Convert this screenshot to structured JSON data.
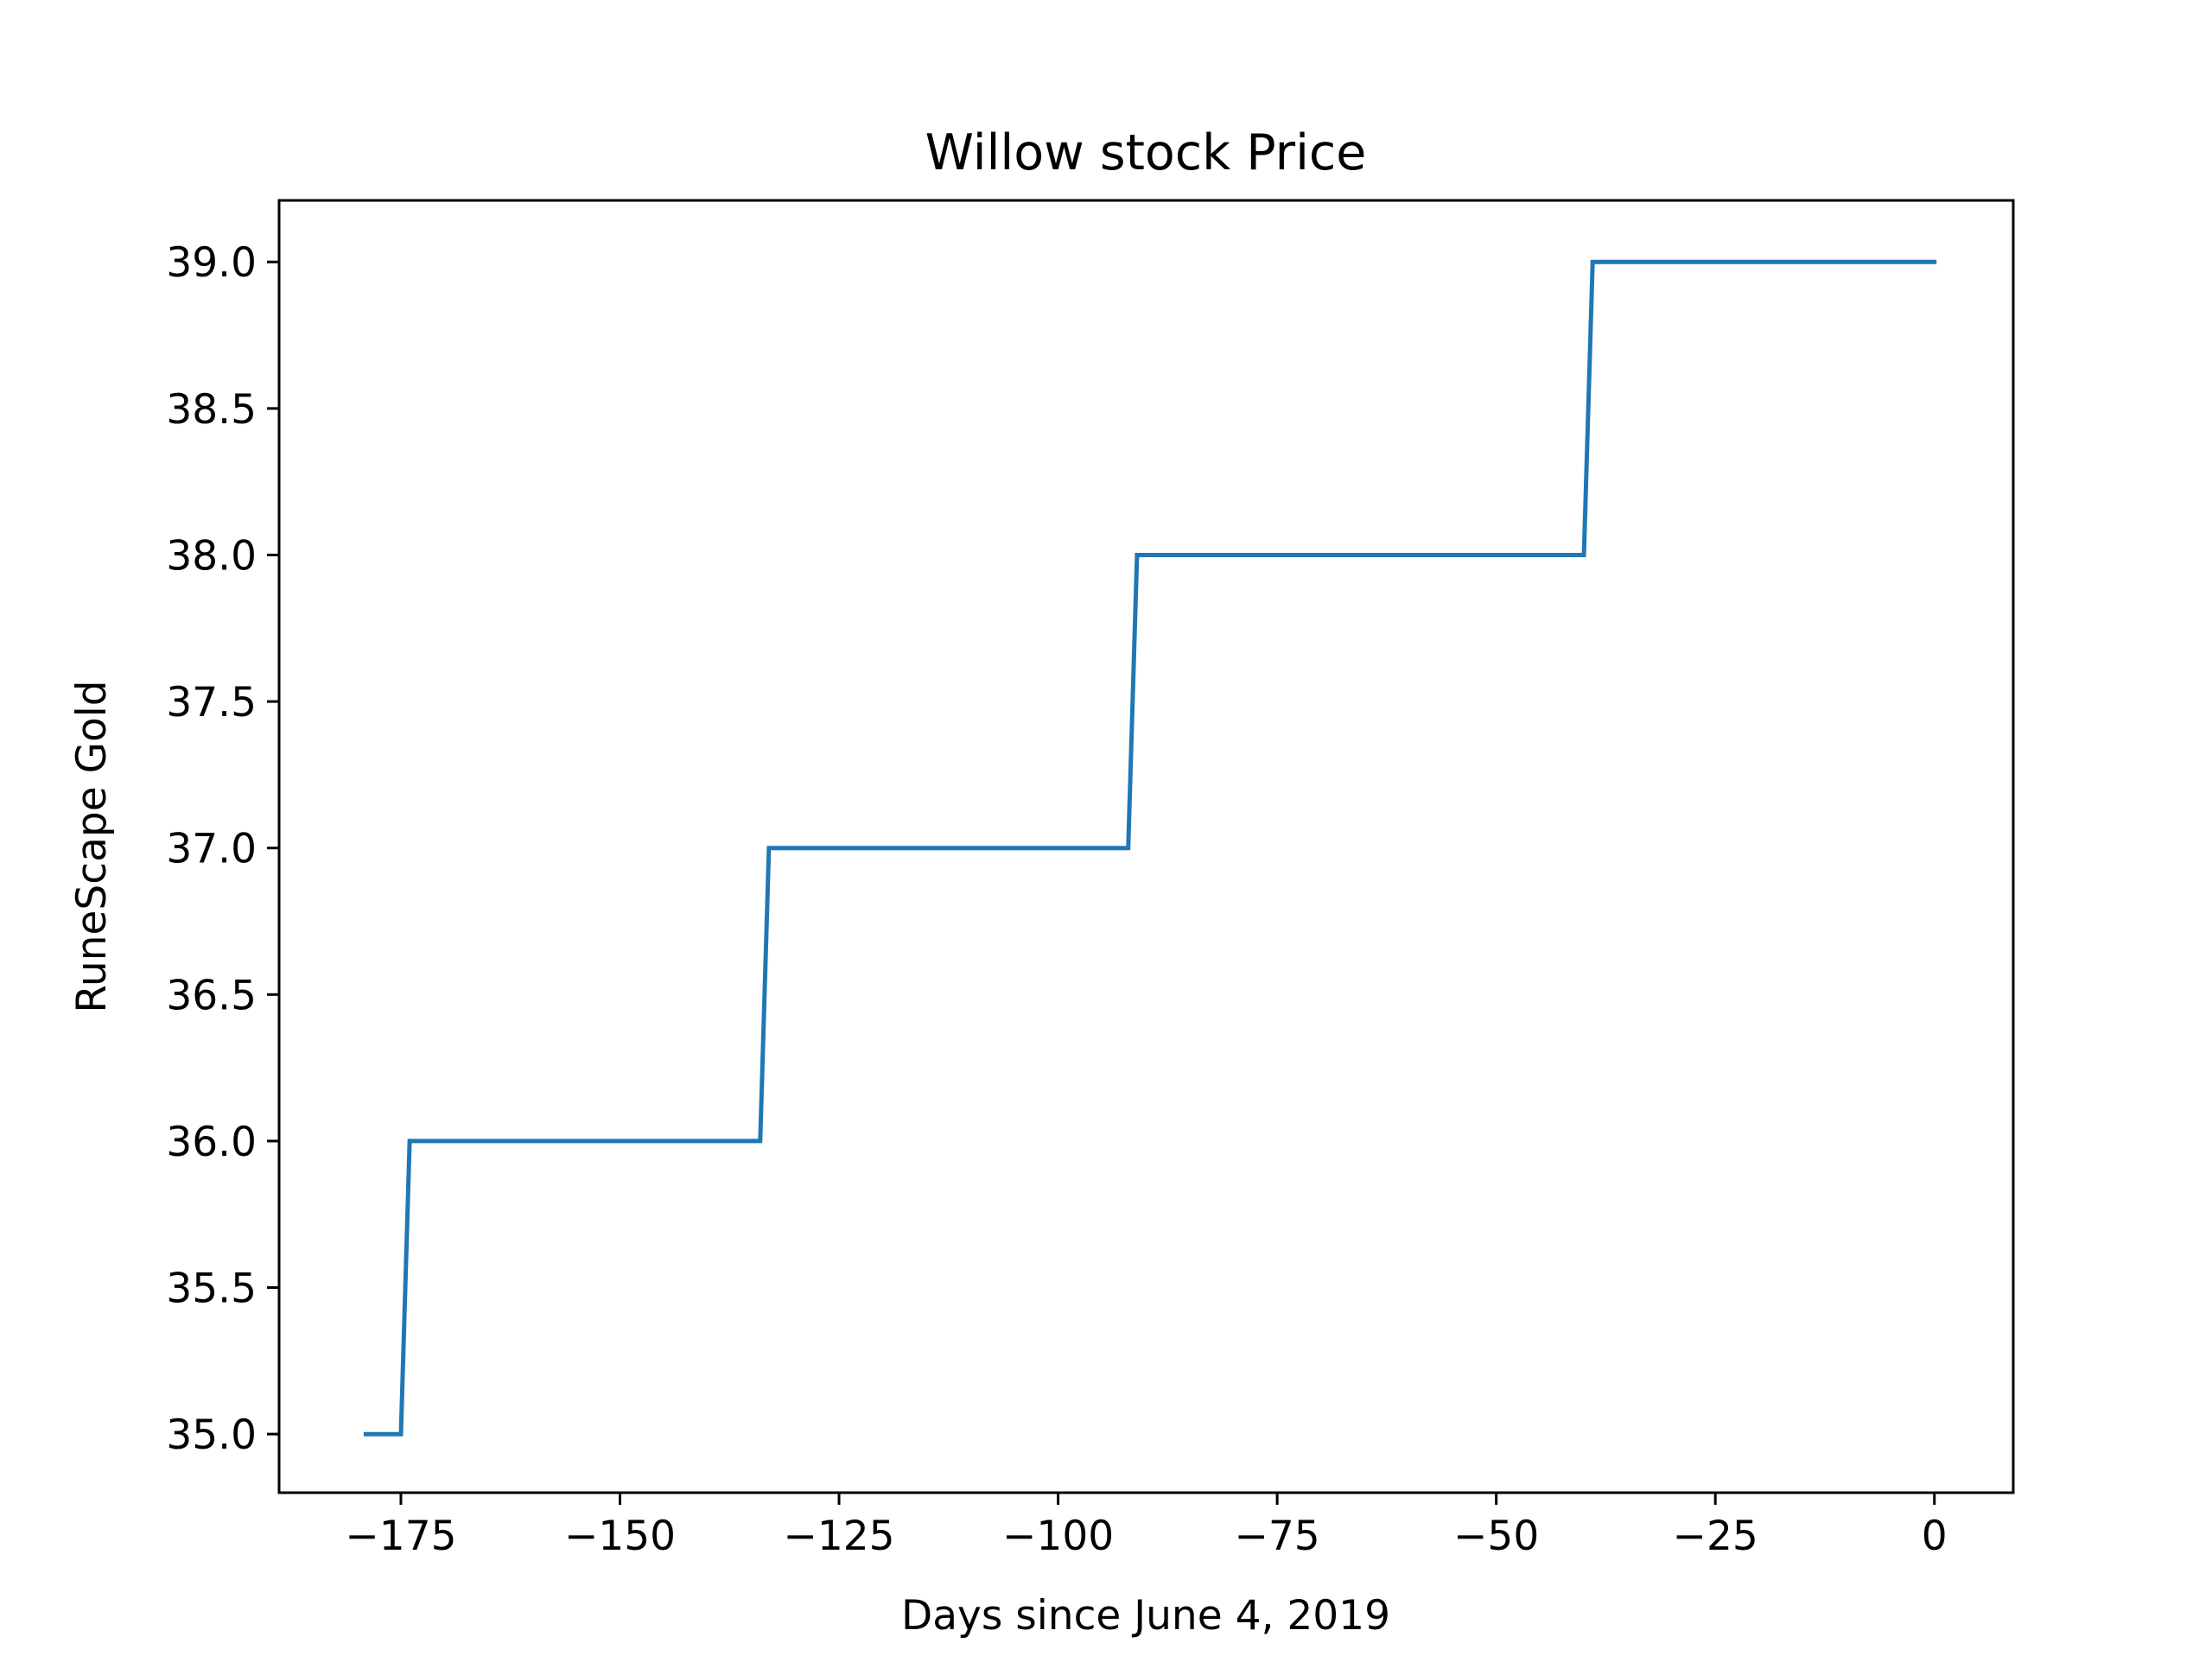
{
  "chart_data": {
    "type": "line",
    "title": "Willow stock Price",
    "xlabel": "Days since June 4, 2019",
    "ylabel": "RuneScape Gold",
    "xlim": [
      -188.9,
      9
    ],
    "ylim": [
      34.8,
      39.21
    ],
    "xticks": [
      {
        "value": -175,
        "label": "−175"
      },
      {
        "value": -150,
        "label": "−150"
      },
      {
        "value": -125,
        "label": "−125"
      },
      {
        "value": -100,
        "label": "−100"
      },
      {
        "value": -75,
        "label": "−75"
      },
      {
        "value": -50,
        "label": "−50"
      },
      {
        "value": -25,
        "label": "−25"
      },
      {
        "value": 0,
        "label": "0"
      }
    ],
    "yticks": [
      {
        "value": 35.0,
        "label": "35.0"
      },
      {
        "value": 35.5,
        "label": "35.5"
      },
      {
        "value": 36.0,
        "label": "36.0"
      },
      {
        "value": 36.5,
        "label": "36.5"
      },
      {
        "value": 37.0,
        "label": "37.0"
      },
      {
        "value": 37.5,
        "label": "37.5"
      },
      {
        "value": 38.0,
        "label": "38.0"
      },
      {
        "value": 38.5,
        "label": "38.5"
      },
      {
        "value": 39.0,
        "label": "39.0"
      }
    ],
    "grid": false,
    "colors": {
      "series": "#1f77b4"
    },
    "series": [
      {
        "x": [
          -179,
          -175,
          -174,
          -134,
          -133,
          -92,
          -91,
          -40,
          -39,
          0
        ],
        "y": [
          35,
          35,
          36,
          36,
          37,
          37,
          38,
          38,
          39,
          39
        ]
      }
    ]
  }
}
